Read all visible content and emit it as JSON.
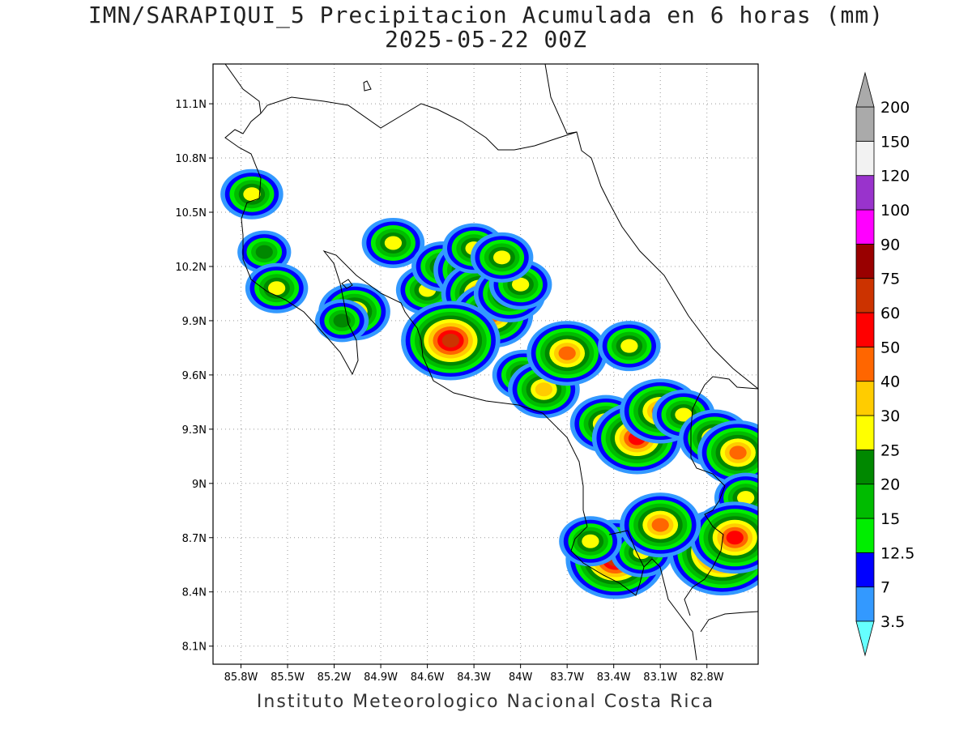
{
  "title": {
    "line1": "IMN/SARAPIQUI_5 Precipitacion Acumulada en 6 horas (mm)",
    "line2": "2025-05-22 00Z"
  },
  "footer": "Instituto Meteorologico Nacional Costa Rica",
  "map": {
    "lon_range": [
      -85.98,
      -82.47
    ],
    "lat_range": [
      8.0,
      11.32
    ],
    "lat_ticks": [
      {
        "v": 8.1,
        "label": "8.1N"
      },
      {
        "v": 8.4,
        "label": "8.4N"
      },
      {
        "v": 8.7,
        "label": "8.7N"
      },
      {
        "v": 9.0,
        "label": "9N"
      },
      {
        "v": 9.3,
        "label": "9.3N"
      },
      {
        "v": 9.6,
        "label": "9.6N"
      },
      {
        "v": 9.9,
        "label": "9.9N"
      },
      {
        "v": 10.2,
        "label": "10.2N"
      },
      {
        "v": 10.5,
        "label": "10.5N"
      },
      {
        "v": 10.8,
        "label": "10.8N"
      },
      {
        "v": 11.1,
        "label": "11.1N"
      }
    ],
    "lon_ticks": [
      {
        "v": -85.8,
        "label": "85.8W"
      },
      {
        "v": -85.5,
        "label": "85.5W"
      },
      {
        "v": -85.2,
        "label": "85.2W"
      },
      {
        "v": -84.9,
        "label": "84.9W"
      },
      {
        "v": -84.6,
        "label": "84.6W"
      },
      {
        "v": -84.3,
        "label": "84.3W"
      },
      {
        "v": -84.0,
        "label": "84W"
      },
      {
        "v": -83.7,
        "label": "83.7W"
      },
      {
        "v": -83.4,
        "label": "83.4W"
      },
      {
        "v": -83.1,
        "label": "83.1W"
      },
      {
        "v": -82.8,
        "label": "82.8W"
      }
    ],
    "gridlines": true
  },
  "legend": {
    "levels": [
      "3.5",
      "7",
      "12.5",
      "15",
      "20",
      "25",
      "30",
      "40",
      "50",
      "60",
      "75",
      "90",
      "100",
      "120",
      "150",
      "200"
    ],
    "colors": [
      "#66ffff",
      "#3399ff",
      "#0000ff",
      "#00ee00",
      "#00bb00",
      "#008800",
      "#ffff00",
      "#ffcc00",
      "#ff6600",
      "#ff0000",
      "#cc3300",
      "#990000",
      "#ff00ff",
      "#9933cc",
      "#f2f2f2",
      "#aaaaaa"
    ]
  },
  "precip_cells": [
    {
      "lon": -85.73,
      "lat": 10.6,
      "mm": 25
    },
    {
      "lon": -85.65,
      "lat": 10.28,
      "mm": 20
    },
    {
      "lon": -85.57,
      "lat": 10.08,
      "mm": 25
    },
    {
      "lon": -85.07,
      "lat": 9.95,
      "mm": 30
    },
    {
      "lon": -85.15,
      "lat": 9.9,
      "mm": 20
    },
    {
      "lon": -84.82,
      "lat": 10.33,
      "mm": 25
    },
    {
      "lon": -84.6,
      "lat": 10.07,
      "mm": 25
    },
    {
      "lon": -84.5,
      "lat": 10.2,
      "mm": 25
    },
    {
      "lon": -84.3,
      "lat": 10.18,
      "mm": 40
    },
    {
      "lon": -84.25,
      "lat": 10.05,
      "mm": 40
    },
    {
      "lon": -84.18,
      "lat": 9.93,
      "mm": 40
    },
    {
      "lon": -84.07,
      "lat": 10.05,
      "mm": 30
    },
    {
      "lon": -84.0,
      "lat": 10.1,
      "mm": 25
    },
    {
      "lon": -84.3,
      "lat": 10.3,
      "mm": 25
    },
    {
      "lon": -84.12,
      "lat": 10.25,
      "mm": 25
    },
    {
      "lon": -84.45,
      "lat": 9.79,
      "mm": 60
    },
    {
      "lon": -83.98,
      "lat": 9.6,
      "mm": 25
    },
    {
      "lon": -83.85,
      "lat": 9.52,
      "mm": 30
    },
    {
      "lon": -83.7,
      "lat": 9.72,
      "mm": 40
    },
    {
      "lon": -83.3,
      "lat": 9.76,
      "mm": 25
    },
    {
      "lon": -83.45,
      "lat": 9.33,
      "mm": 30
    },
    {
      "lon": -83.25,
      "lat": 9.25,
      "mm": 50
    },
    {
      "lon": -83.1,
      "lat": 9.4,
      "mm": 40
    },
    {
      "lon": -82.95,
      "lat": 9.38,
      "mm": 25
    },
    {
      "lon": -82.75,
      "lat": 9.25,
      "mm": 30
    },
    {
      "lon": -82.6,
      "lat": 9.17,
      "mm": 40
    },
    {
      "lon": -82.55,
      "lat": 8.92,
      "mm": 25
    },
    {
      "lon": -82.7,
      "lat": 8.62,
      "mm": 75
    },
    {
      "lon": -82.62,
      "lat": 8.7,
      "mm": 50
    },
    {
      "lon": -83.39,
      "lat": 8.58,
      "mm": 60
    },
    {
      "lon": -83.22,
      "lat": 8.62,
      "mm": 25
    },
    {
      "lon": -83.1,
      "lat": 8.77,
      "mm": 40
    },
    {
      "lon": -83.55,
      "lat": 8.68,
      "mm": 25
    }
  ]
}
